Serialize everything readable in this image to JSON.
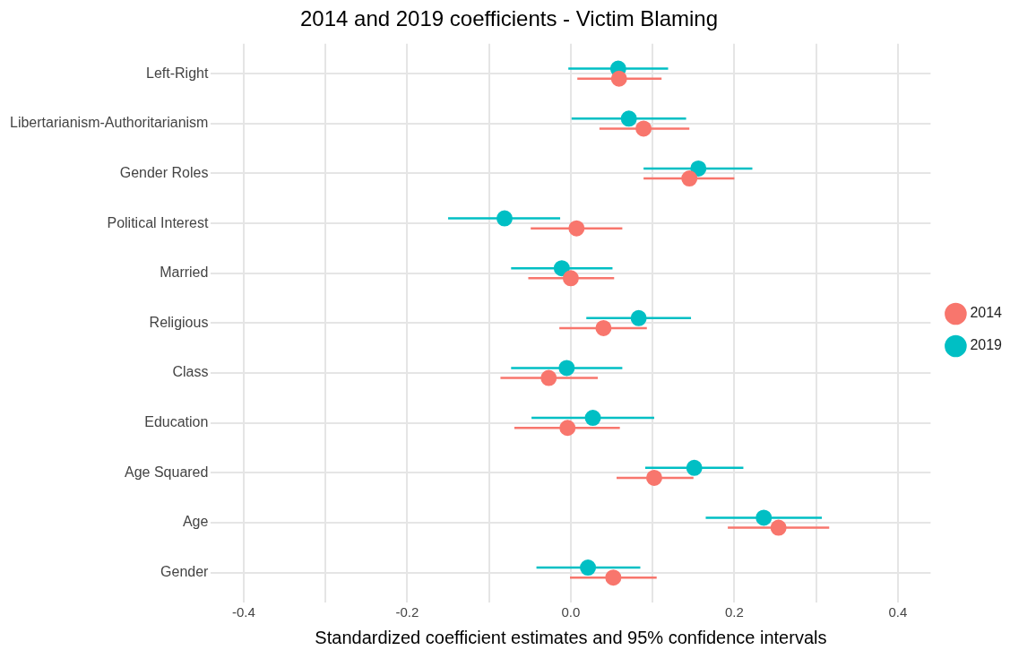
{
  "chart_data": {
    "type": "scatter",
    "orientation": "horizontal",
    "title": "2014 and 2019 coefficients - Victim Blaming",
    "xlabel": "Standardized coefficient estimates and 95% confidence intervals",
    "categories": [
      "Left-Right",
      "Libertarianism-Authoritarianism",
      "Gender Roles",
      "Political Interest",
      "Married",
      "Religious",
      "Class",
      "Education",
      "Age Squared",
      "Age",
      "Gender"
    ],
    "series": [
      {
        "name": "2014",
        "color": "#f8766d",
        "values": [
          0.059,
          0.089,
          0.145,
          0.007,
          0.0,
          0.04,
          -0.027,
          -0.004,
          0.102,
          0.254,
          0.052
        ],
        "errors": [
          [
            0.008,
            0.111
          ],
          [
            0.035,
            0.145
          ],
          [
            0.089,
            0.2
          ],
          [
            -0.049,
            0.063
          ],
          [
            -0.052,
            0.053
          ],
          [
            -0.014,
            0.093
          ],
          [
            -0.086,
            0.033
          ],
          [
            -0.069,
            0.06
          ],
          [
            0.056,
            0.15
          ],
          [
            0.192,
            0.316
          ],
          [
            -0.001,
            0.105
          ]
        ]
      },
      {
        "name": "2019",
        "color": "#00bfc4",
        "values": [
          0.058,
          0.071,
          0.156,
          -0.081,
          -0.011,
          0.083,
          -0.005,
          0.027,
          0.151,
          0.236,
          0.021
        ],
        "errors": [
          [
            -0.003,
            0.119
          ],
          [
            0.001,
            0.141
          ],
          [
            0.089,
            0.222
          ],
          [
            -0.15,
            -0.013
          ],
          [
            -0.073,
            0.051
          ],
          [
            0.019,
            0.147
          ],
          [
            -0.073,
            0.063
          ],
          [
            -0.048,
            0.102
          ],
          [
            0.091,
            0.211
          ],
          [
            0.165,
            0.307
          ],
          [
            -0.042,
            0.085
          ]
        ]
      }
    ],
    "xlim": [
      -0.44,
      0.44
    ],
    "xticks": [
      -0.4,
      {
        "value": -0.3,
        "label": null
      },
      -0.2,
      {
        "value": -0.1,
        "label": null
      },
      {
        "value": 0,
        "label": "0.0"
      },
      {
        "value": 0.1,
        "label": null
      },
      0.2,
      {
        "value": 0.3,
        "label": null
      },
      0.4
    ],
    "grid": true,
    "legend": "right",
    "marker": "circle"
  }
}
